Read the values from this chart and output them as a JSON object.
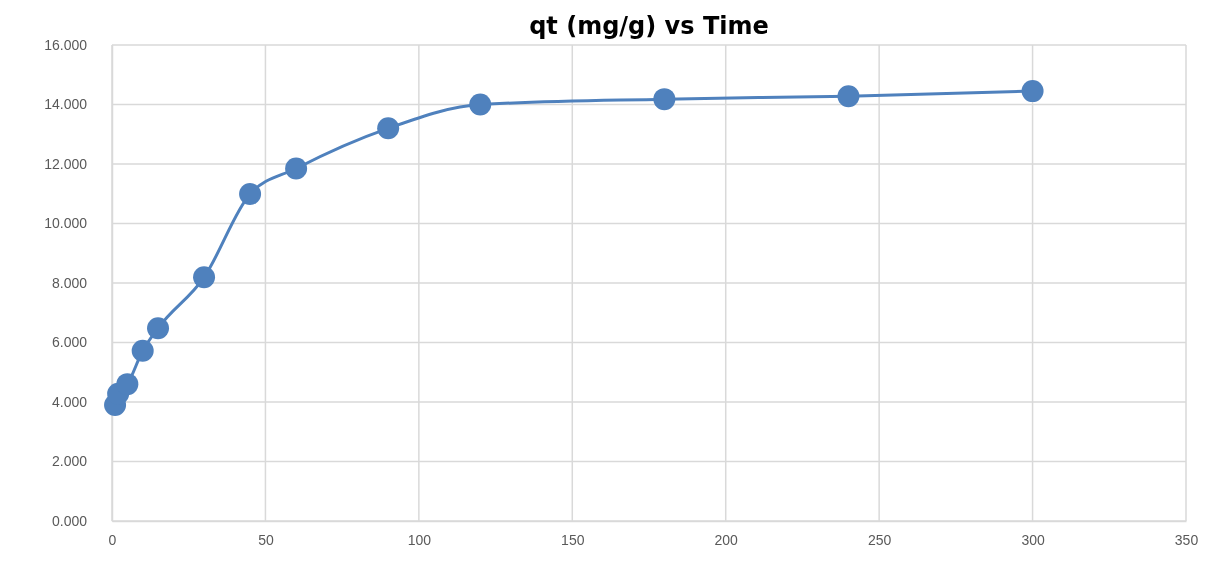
{
  "chart_data": {
    "type": "line",
    "title": "qt (mg/g) vs Time",
    "x": [
      1,
      2,
      5,
      10,
      15,
      30,
      45,
      60,
      90,
      120,
      180,
      240,
      300
    ],
    "series": [
      {
        "color": "#4f81bd",
        "values": [
          3.9,
          4.28,
          4.6,
          5.72,
          6.48,
          8.19,
          10.99,
          11.85,
          13.2,
          14.0,
          14.18,
          14.28,
          14.45
        ]
      }
    ],
    "xlim": [
      0,
      350
    ],
    "xticks": [
      0,
      50,
      100,
      150,
      200,
      250,
      300,
      350
    ],
    "ylim": [
      0,
      16
    ],
    "yticks": [
      {
        "value": 0,
        "label": "0.000"
      },
      {
        "value": 2,
        "label": "2.000"
      },
      {
        "value": 4,
        "label": "4.000"
      },
      {
        "value": 6,
        "label": "6.000"
      },
      {
        "value": 8,
        "label": "8.000"
      },
      {
        "value": 10,
        "label": "10.000"
      },
      {
        "value": 12,
        "label": "12.000"
      },
      {
        "value": 14,
        "label": "14.000"
      },
      {
        "value": 16,
        "label": "16.000"
      }
    ],
    "grid": true,
    "marker": "circle",
    "line_style": "solid"
  }
}
